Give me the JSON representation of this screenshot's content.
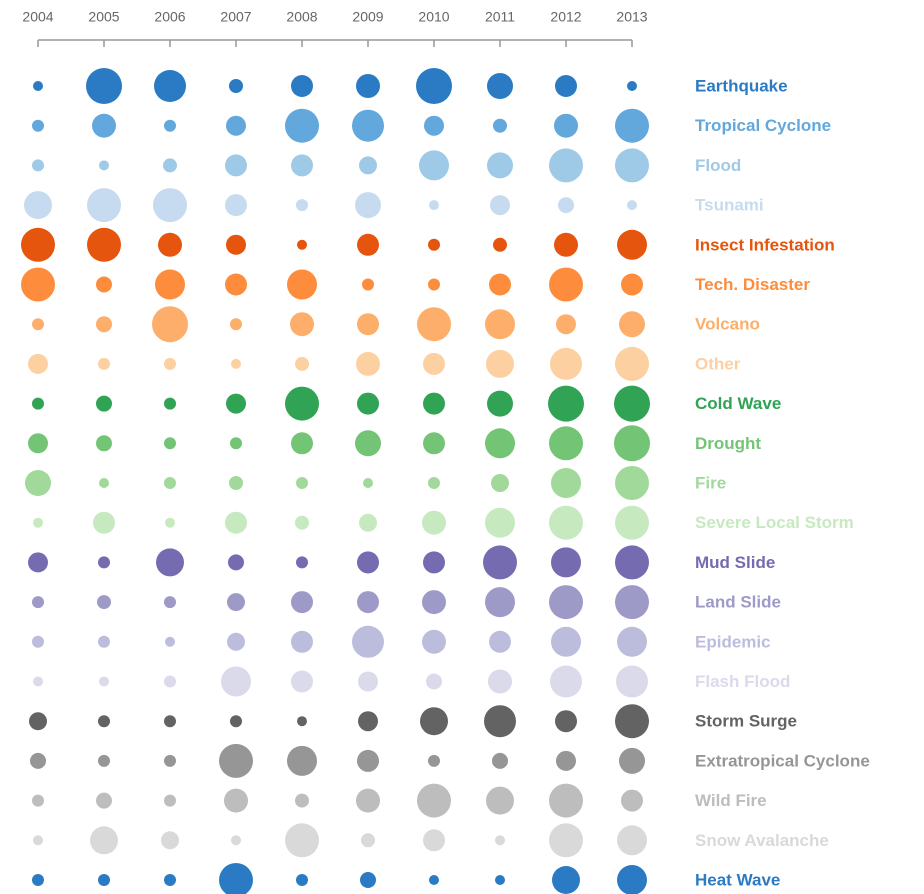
{
  "chart_data": {
    "type": "bubble",
    "categories": [
      "2004",
      "2005",
      "2006",
      "2007",
      "2008",
      "2009",
      "2010",
      "2011",
      "2012",
      "2013"
    ],
    "series": [
      {
        "name": "Earthquake",
        "color": "#2a7bc4",
        "values": [
          5,
          18,
          16,
          7,
          11,
          12,
          18,
          13,
          11,
          5
        ]
      },
      {
        "name": "Tropical Cyclone",
        "color": "#62a8dc",
        "values": [
          6,
          12,
          6,
          10,
          17,
          16,
          10,
          7,
          12,
          17
        ]
      },
      {
        "name": "Flood",
        "color": "#9ecae8",
        "values": [
          6,
          5,
          7,
          11,
          11,
          9,
          15,
          13,
          17,
          17
        ]
      },
      {
        "name": "Tsunami",
        "color": "#c6dbef",
        "values": [
          14,
          17,
          17,
          11,
          6,
          13,
          5,
          10,
          8,
          5
        ]
      },
      {
        "name": "Insect Infestation",
        "color": "#e6550d",
        "values": [
          17,
          17,
          12,
          10,
          5,
          11,
          6,
          7,
          12,
          15
        ]
      },
      {
        "name": "Tech. Disaster",
        "color": "#fd8d3c",
        "values": [
          17,
          8,
          15,
          11,
          15,
          6,
          6,
          11,
          17,
          11
        ]
      },
      {
        "name": "Volcano",
        "color": "#fdae6b",
        "values": [
          6,
          8,
          18,
          6,
          12,
          11,
          17,
          15,
          10,
          13
        ]
      },
      {
        "name": "Other",
        "color": "#fdd0a2",
        "values": [
          10,
          6,
          6,
          5,
          7,
          12,
          11,
          14,
          16,
          17
        ]
      },
      {
        "name": "Cold Wave",
        "color": "#31a354",
        "values": [
          6,
          8,
          6,
          10,
          17,
          11,
          11,
          13,
          18,
          18
        ]
      },
      {
        "name": "Drought",
        "color": "#74c476",
        "values": [
          10,
          8,
          6,
          6,
          11,
          13,
          11,
          15,
          17,
          18
        ]
      },
      {
        "name": "Fire",
        "color": "#a1d99b",
        "values": [
          13,
          5,
          6,
          7,
          6,
          5,
          6,
          9,
          15,
          17
        ]
      },
      {
        "name": "Severe Local Storm",
        "color": "#c7e9c0",
        "values": [
          5,
          11,
          5,
          11,
          7,
          9,
          12,
          15,
          17,
          17
        ]
      },
      {
        "name": "Mud Slide",
        "color": "#756bb1",
        "values": [
          10,
          6,
          14,
          8,
          6,
          11,
          11,
          17,
          15,
          17
        ]
      },
      {
        "name": "Land Slide",
        "color": "#9e9ac8",
        "values": [
          6,
          7,
          6,
          9,
          11,
          11,
          12,
          15,
          17,
          17
        ]
      },
      {
        "name": "Epidemic",
        "color": "#bcbddc",
        "values": [
          6,
          6,
          5,
          9,
          11,
          16,
          12,
          11,
          15,
          15
        ]
      },
      {
        "name": "Flash Flood",
        "color": "#dadaeb",
        "values": [
          5,
          5,
          6,
          15,
          11,
          10,
          8,
          12,
          16,
          16
        ]
      },
      {
        "name": "Storm Surge",
        "color": "#636363",
        "values": [
          9,
          6,
          6,
          6,
          5,
          10,
          14,
          16,
          11,
          17
        ]
      },
      {
        "name": "Extratropical Cyclone",
        "color": "#969696",
        "values": [
          8,
          6,
          6,
          17,
          15,
          11,
          6,
          8,
          10,
          13
        ]
      },
      {
        "name": "Wild Fire",
        "color": "#bdbdbd",
        "values": [
          6,
          8,
          6,
          12,
          7,
          12,
          17,
          14,
          17,
          11
        ]
      },
      {
        "name": "Snow Avalanche",
        "color": "#d9d9d9",
        "values": [
          5,
          14,
          9,
          5,
          17,
          7,
          11,
          5,
          17,
          15
        ]
      },
      {
        "name": "Heat Wave",
        "color": "#2a7bc4",
        "values": [
          6,
          6,
          6,
          17,
          6,
          8,
          5,
          5,
          14,
          15
        ]
      }
    ]
  }
}
